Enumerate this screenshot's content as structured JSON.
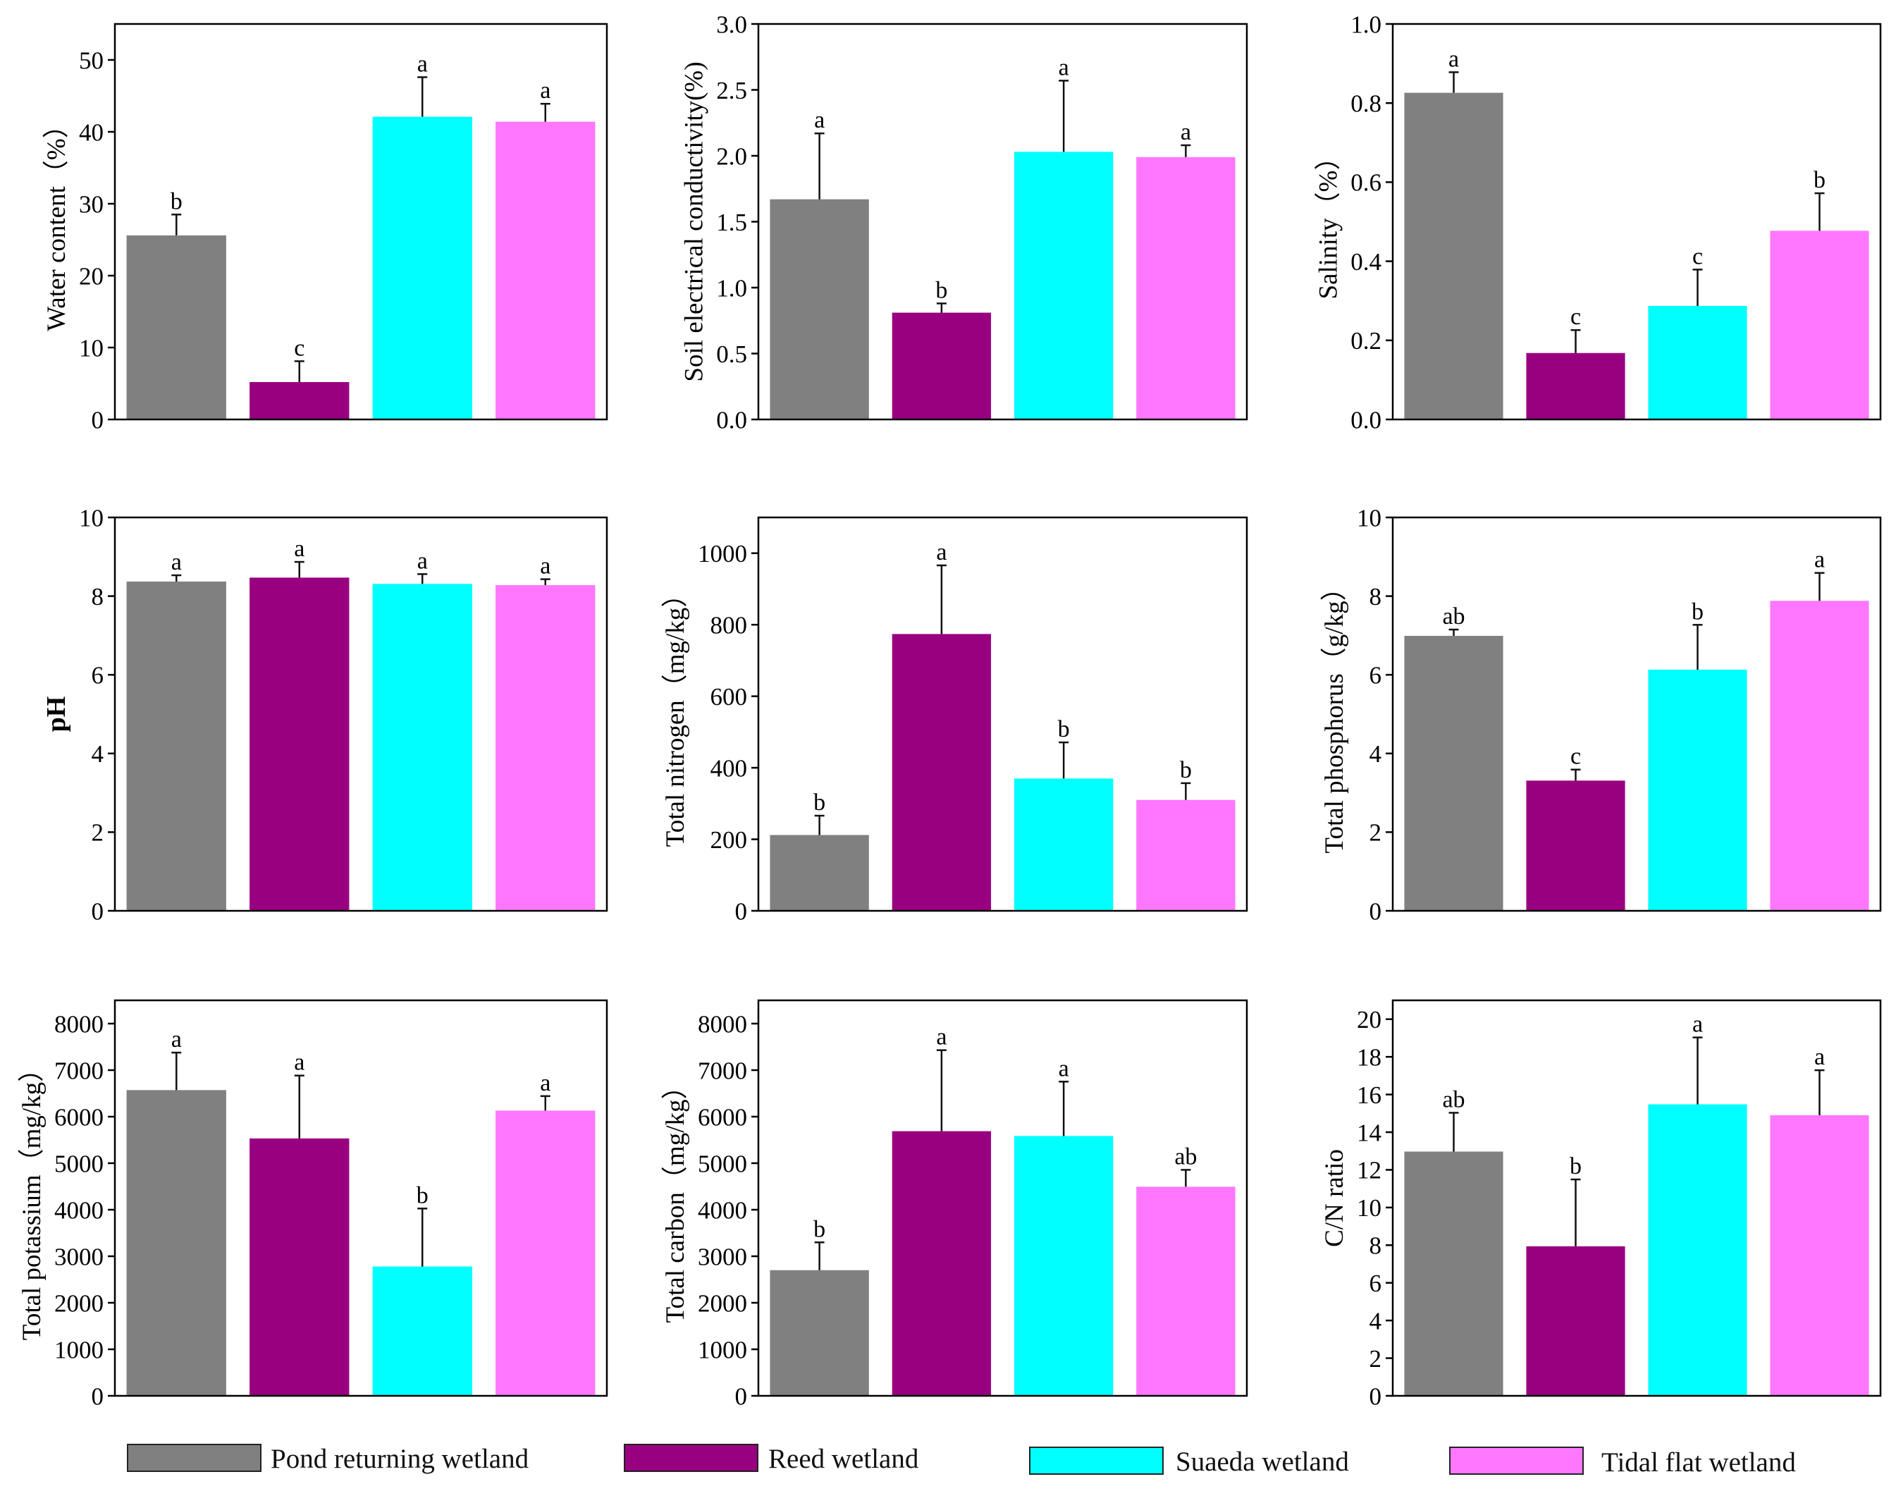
{
  "legend": [
    {
      "label": "Pond returning wetland",
      "color": "#808080"
    },
    {
      "label": "Reed wetland",
      "color": "#990080"
    },
    {
      "label": "Suaeda wetland",
      "color": "#00FFFF"
    },
    {
      "label": "Tidal flat wetland",
      "color": "#FF77FF"
    }
  ],
  "chart_data": [
    {
      "type": "bar",
      "ylabel": "Water content（%）",
      "ylim": [
        0,
        55
      ],
      "yticks": [
        "0",
        "10",
        "20",
        "30",
        "40",
        "50"
      ],
      "values": [
        25.6,
        5.2,
        42.1,
        41.4
      ],
      "errors": [
        2.9,
        2.9,
        5.5,
        2.5
      ],
      "letters": [
        "b",
        "c",
        "a",
        "a"
      ]
    },
    {
      "type": "bar",
      "ylabel": "Soil electrical conductivity(%)",
      "ylim": [
        0,
        3.0
      ],
      "yticks": [
        "0.0",
        "0.5",
        "1.0",
        "1.5",
        "2.0",
        "2.5",
        "3.0"
      ],
      "values": [
        1.67,
        0.81,
        2.03,
        1.99
      ],
      "errors": [
        0.5,
        0.07,
        0.54,
        0.09
      ],
      "letters": [
        "a",
        "b",
        "a",
        "a"
      ]
    },
    {
      "type": "bar",
      "ylabel": "Salinity（%）",
      "ylim": [
        0,
        1.0
      ],
      "yticks": [
        "0.0",
        "0.2",
        "0.4",
        "0.6",
        "0.8",
        "1.0"
      ],
      "values": [
        0.826,
        0.168,
        0.287,
        0.477
      ],
      "errors": [
        0.052,
        0.058,
        0.092,
        0.095
      ],
      "letters": [
        "a",
        "c",
        "c",
        "b"
      ]
    },
    {
      "type": "bar",
      "ylabel": "pH",
      "ylim": [
        0,
        10
      ],
      "yticks": [
        "0",
        "2",
        "4",
        "6",
        "8",
        "10"
      ],
      "values": [
        8.37,
        8.47,
        8.31,
        8.28
      ],
      "errors": [
        0.16,
        0.4,
        0.25,
        0.15
      ],
      "letters": [
        "a",
        "a",
        "a",
        "a"
      ]
    },
    {
      "type": "bar",
      "ylabel": "Total nitrogen（mg/kg）",
      "ylim": [
        0,
        1100
      ],
      "yticks": [
        "0",
        "200",
        "400",
        "600",
        "800",
        "1000"
      ],
      "values": [
        212,
        774,
        370,
        310
      ],
      "errors": [
        54,
        192,
        101,
        47
      ],
      "letters": [
        "b",
        "a",
        "b",
        "b"
      ]
    },
    {
      "type": "bar",
      "ylabel": "Total phosphorus（g/kg）",
      "ylim": [
        0,
        10
      ],
      "yticks": [
        "0",
        "2",
        "4",
        "6",
        "8",
        "10"
      ],
      "values": [
        6.99,
        3.31,
        6.13,
        7.88
      ],
      "errors": [
        0.16,
        0.28,
        1.14,
        0.71
      ],
      "letters": [
        "ab",
        "c",
        "b",
        "a"
      ]
    },
    {
      "type": "bar",
      "ylabel": "Total potassium（mg/kg）",
      "ylim": [
        0,
        8500
      ],
      "yticks": [
        "0",
        "1000",
        "2000",
        "3000",
        "4000",
        "5000",
        "6000",
        "7000",
        "8000"
      ],
      "values": [
        6571,
        5532,
        2779,
        6130
      ],
      "errors": [
        806,
        1351,
        1247,
        312
      ],
      "letters": [
        "a",
        "a",
        "b",
        "a"
      ]
    },
    {
      "type": "bar",
      "ylabel": "Total carbon（mg/kg）",
      "ylim": [
        0,
        8500
      ],
      "yticks": [
        "0",
        "1000",
        "2000",
        "3000",
        "4000",
        "5000",
        "6000",
        "7000",
        "8000"
      ],
      "values": [
        2701,
        5688,
        5584,
        4494
      ],
      "errors": [
        598,
        1741,
        1169,
        363
      ],
      "letters": [
        "b",
        "a",
        "a",
        "ab"
      ]
    },
    {
      "type": "bar",
      "ylabel": "C/N ratio",
      "ylim": [
        0,
        21
      ],
      "yticks": [
        "0",
        "2",
        "4",
        "6",
        "8",
        "10",
        "12",
        "14",
        "16",
        "18",
        "20"
      ],
      "values": [
        12.97,
        7.94,
        15.48,
        14.9
      ],
      "errors": [
        2.06,
        3.55,
        3.55,
        2.39
      ],
      "letters": [
        "ab",
        "b",
        "a",
        "a"
      ]
    }
  ]
}
